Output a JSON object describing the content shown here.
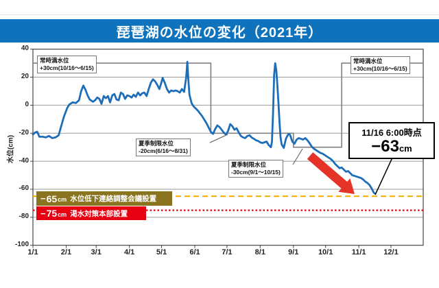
{
  "header": {
    "title": "琵琶湖の水位の変化（2021年）"
  },
  "colors": {
    "header_bg": "#0e72bc",
    "line_blue": "#1d6db8",
    "step_gray": "#808080",
    "grid_gray": "#9a9a9a",
    "border_gray": "#444444",
    "warn_yellow": "#f2b200",
    "alert_red": "#e60012",
    "band_olive": "#8a7420",
    "arrow_red": "#e63327"
  },
  "y_axis": {
    "title": "水位(cm)",
    "ticks": [
      40,
      20,
      0,
      -20,
      -40,
      -60,
      -80,
      -100
    ]
  },
  "x_axis": {
    "ticks": [
      "1/1",
      "2/1",
      "3/1",
      "4/1",
      "5/1",
      "6/1",
      "7/1",
      "8/1",
      "9/1",
      "10/1",
      "11/1",
      "12/1"
    ]
  },
  "step_labels": {
    "perm_left": {
      "line1": "常時満水位",
      "line2": "+30cm(10/16～6/15)"
    },
    "perm_right": {
      "line1": "常時満水位",
      "line2": "+30cm(10/16～6/15)"
    },
    "summer1": {
      "line1": "夏季制限水位",
      "line2": "-20cm(6/16～8/31)"
    },
    "summer2": {
      "line1": "夏季制限水位",
      "line2": "-30cm(9/1～10/15)"
    }
  },
  "thresholds": {
    "meeting": {
      "level": -65,
      "sign": "−",
      "value": "65",
      "unit": "cm",
      "label": "水位低下連絡調整会議設置"
    },
    "drought": {
      "level": -75,
      "sign": "−",
      "value": "75",
      "unit": "cm",
      "label": "渇水対策本部設置"
    }
  },
  "annotation": {
    "line1": "11/16 6:00時点",
    "sign": "−",
    "value": "63",
    "unit": "cm"
  },
  "chart_data": {
    "type": "line",
    "title": "琵琶湖の水位の変化（2021年）",
    "xlabel": "",
    "ylabel": "水位(cm)",
    "ylim": [
      -100,
      40
    ],
    "x_range": [
      "1/1",
      "12/31"
    ],
    "grid": "horizontal",
    "series": [
      {
        "name": "水位",
        "color": "#1d6db8",
        "points": [
          [
            "1/1",
            -21
          ],
          [
            "1/3",
            -19.5
          ],
          [
            "1/5",
            -19
          ],
          [
            "1/7",
            -22.5
          ],
          [
            "1/10",
            -22.5
          ],
          [
            "1/13",
            -23
          ],
          [
            "1/16",
            -22
          ],
          [
            "1/19",
            -23.5
          ],
          [
            "1/22",
            -23
          ],
          [
            "1/25",
            -21.5
          ],
          [
            "1/27",
            -16
          ],
          [
            "1/30",
            -8
          ],
          [
            "2/2",
            -2
          ],
          [
            "2/4",
            0.5
          ],
          [
            "2/7",
            2
          ],
          [
            "2/10",
            1.5
          ],
          [
            "2/13",
            3.5
          ],
          [
            "2/15",
            10
          ],
          [
            "2/17",
            14
          ],
          [
            "2/19",
            11
          ],
          [
            "2/21",
            7
          ],
          [
            "2/23",
            4
          ],
          [
            "2/26",
            2.5
          ],
          [
            "2/28",
            3.5
          ],
          [
            "3/2",
            5.5
          ],
          [
            "3/4",
            4.5
          ],
          [
            "3/6",
            1
          ],
          [
            "3/8",
            6.5
          ],
          [
            "3/10",
            5
          ],
          [
            "3/12",
            6.5
          ],
          [
            "3/14",
            2
          ],
          [
            "3/16",
            7
          ],
          [
            "3/18",
            8
          ],
          [
            "3/20",
            4
          ],
          [
            "3/22",
            3.5
          ],
          [
            "3/24",
            9
          ],
          [
            "3/26",
            8
          ],
          [
            "3/28",
            4.5
          ],
          [
            "3/30",
            7
          ],
          [
            "4/1",
            6.5
          ],
          [
            "4/3",
            5.5
          ],
          [
            "4/5",
            7.5
          ],
          [
            "4/7",
            6
          ],
          [
            "4/9",
            9
          ],
          [
            "4/11",
            7
          ],
          [
            "4/13",
            8.5
          ],
          [
            "4/15",
            9
          ],
          [
            "4/17",
            6.5
          ],
          [
            "4/19",
            11.5
          ],
          [
            "4/21",
            16
          ],
          [
            "4/23",
            18.5
          ],
          [
            "4/25",
            17
          ],
          [
            "4/27",
            14.5
          ],
          [
            "4/29",
            11.5
          ],
          [
            "5/1",
            16.5
          ],
          [
            "5/2",
            19.5
          ],
          [
            "5/4",
            16
          ],
          [
            "5/6",
            11.5
          ],
          [
            "5/8",
            9
          ],
          [
            "5/10",
            10.5
          ],
          [
            "5/12",
            10
          ],
          [
            "5/14",
            10.5
          ],
          [
            "5/16",
            10
          ],
          [
            "5/18",
            9
          ],
          [
            "5/20",
            11.5
          ],
          [
            "5/22",
            9.5
          ],
          [
            "5/24",
            20
          ],
          [
            "5/25",
            31
          ],
          [
            "5/26",
            18
          ],
          [
            "5/27",
            7.5
          ],
          [
            "5/29",
            1.5
          ],
          [
            "5/31",
            -1
          ],
          [
            "6/2",
            -2.5
          ],
          [
            "6/4",
            -4
          ],
          [
            "6/6",
            -6
          ],
          [
            "6/8",
            -8
          ],
          [
            "6/10",
            -10.5
          ],
          [
            "6/12",
            -13
          ],
          [
            "6/14",
            -16
          ],
          [
            "6/16",
            -19
          ],
          [
            "6/18",
            -20.5
          ],
          [
            "6/20",
            -17
          ],
          [
            "6/22",
            -14.5
          ],
          [
            "6/24",
            -15.5
          ],
          [
            "6/26",
            -17.5
          ],
          [
            "6/28",
            -19.5
          ],
          [
            "6/30",
            -21
          ],
          [
            "7/2",
            -18.5
          ],
          [
            "7/4",
            -13.5
          ],
          [
            "7/6",
            -15
          ],
          [
            "7/8",
            -17.5
          ],
          [
            "7/10",
            -16.5
          ],
          [
            "7/12",
            -19.5
          ],
          [
            "7/14",
            -22
          ],
          [
            "7/16",
            -23
          ],
          [
            "7/18",
            -23.5
          ],
          [
            "7/20",
            -22
          ],
          [
            "7/22",
            -21.5
          ],
          [
            "7/24",
            -23
          ],
          [
            "7/26",
            -24
          ],
          [
            "7/28",
            -25
          ],
          [
            "7/30",
            -25.5
          ],
          [
            "8/1",
            -26.5
          ],
          [
            "8/3",
            -27
          ],
          [
            "8/5",
            -26.5
          ],
          [
            "8/7",
            -26
          ],
          [
            "8/9",
            -28.5
          ],
          [
            "8/11",
            -30
          ],
          [
            "8/12",
            -26
          ],
          [
            "8/13",
            -5
          ],
          [
            "8/14",
            22
          ],
          [
            "8/15",
            30
          ],
          [
            "8/16",
            25
          ],
          [
            "8/17",
            15
          ],
          [
            "8/18",
            2
          ],
          [
            "8/19",
            -12
          ],
          [
            "8/20",
            -23
          ],
          [
            "8/21",
            -28
          ],
          [
            "8/23",
            -30.5
          ],
          [
            "8/25",
            -24
          ],
          [
            "8/27",
            -21
          ],
          [
            "8/28",
            -20.5
          ],
          [
            "8/29",
            -21.5
          ],
          [
            "8/31",
            -26
          ],
          [
            "9/2",
            -27.5
          ],
          [
            "9/4",
            -24.5
          ],
          [
            "9/6",
            -23.5
          ],
          [
            "9/8",
            -24
          ],
          [
            "9/10",
            -24.5
          ],
          [
            "9/12",
            -23.5
          ],
          [
            "9/14",
            -25
          ],
          [
            "9/16",
            -27
          ],
          [
            "9/18",
            -29.5
          ],
          [
            "9/20",
            -31
          ],
          [
            "9/22",
            -32
          ],
          [
            "9/24",
            -33
          ],
          [
            "9/26",
            -34
          ],
          [
            "9/28",
            -34.5
          ],
          [
            "9/30",
            -35.5
          ],
          [
            "10/2",
            -36.5
          ],
          [
            "10/4",
            -37.5
          ],
          [
            "10/6",
            -38.5
          ],
          [
            "10/8",
            -40
          ],
          [
            "10/10",
            -42
          ],
          [
            "10/12",
            -43.5
          ],
          [
            "10/14",
            -45
          ],
          [
            "10/16",
            -44.5
          ],
          [
            "10/18",
            -46
          ],
          [
            "10/20",
            -47.5
          ],
          [
            "10/22",
            -47
          ],
          [
            "10/24",
            -48.5
          ],
          [
            "10/26",
            -50
          ],
          [
            "10/28",
            -50.5
          ],
          [
            "10/30",
            -51
          ],
          [
            "11/1",
            -51.5
          ],
          [
            "11/3",
            -52
          ],
          [
            "11/5",
            -53
          ],
          [
            "11/7",
            -54.5
          ],
          [
            "11/9",
            -55.5
          ],
          [
            "11/11",
            -57
          ],
          [
            "11/13",
            -59.5
          ],
          [
            "11/15",
            -62.5
          ],
          [
            "11/16",
            -63
          ]
        ]
      }
    ],
    "step_series": {
      "name": "制限水位",
      "segments": [
        {
          "from": "1/1",
          "to": "6/15",
          "level": 30
        },
        {
          "from": "6/16",
          "to": "8/31",
          "level": -20
        },
        {
          "from": "9/1",
          "to": "10/15",
          "level": -30
        },
        {
          "from": "10/16",
          "to": "12/31",
          "level": 30
        }
      ]
    },
    "threshold_lines": [
      {
        "level": -65,
        "style": "dashed",
        "color": "#f2b200",
        "label": "−65cm 水位低下連絡調整会議設置"
      },
      {
        "level": -75,
        "style": "dotted",
        "color": "#e60012",
        "label": "−75cm 渇水対策本部設置"
      }
    ],
    "annotations": [
      {
        "text": "11/16 6:00時点 −63cm",
        "target": [
          "11/16",
          -63
        ]
      }
    ]
  }
}
